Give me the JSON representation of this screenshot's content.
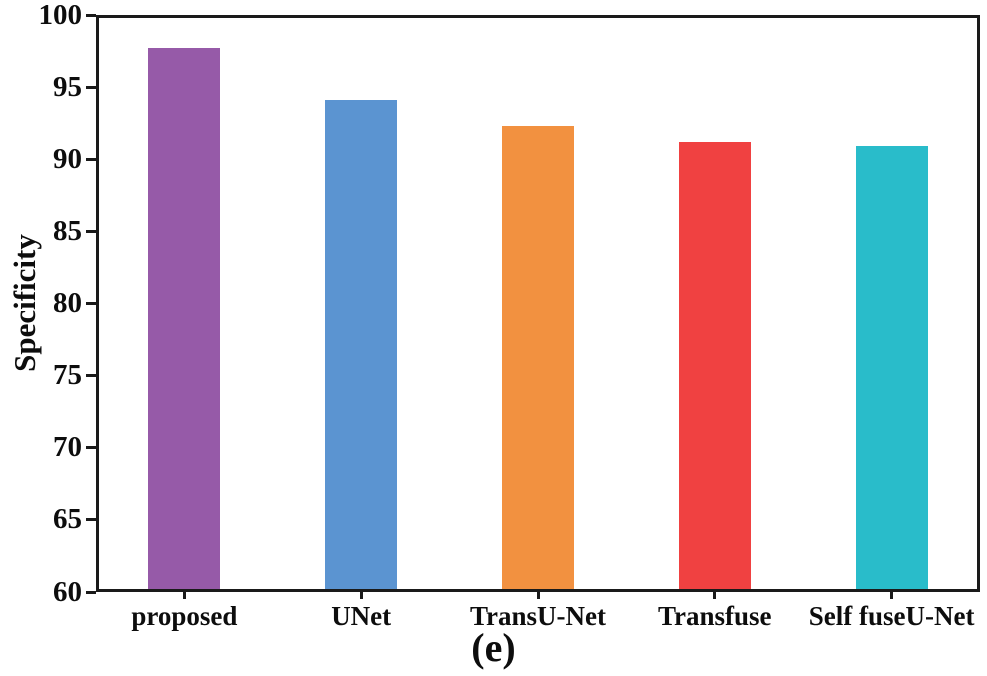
{
  "figure": {
    "caption": "(e)"
  },
  "chart_data": {
    "type": "bar",
    "title": "",
    "xlabel": "",
    "ylabel": "Specificity",
    "categories": [
      "proposed",
      "UNet",
      "TransU-Net",
      "Transfuse",
      "Self fuseU-Net"
    ],
    "values": [
      97.7,
      94.1,
      92.3,
      91.2,
      90.9
    ],
    "bar_colors": [
      "#965AA8",
      "#5B94D1",
      "#F29140",
      "#F04141",
      "#29BCCA"
    ],
    "ylim": [
      60,
      100
    ],
    "yticks": [
      60,
      65,
      70,
      75,
      80,
      85,
      90,
      95,
      100
    ],
    "grid": false,
    "legend": "none",
    "axis_color": "#1a1a1a",
    "text_color": "#0d0d0d"
  }
}
